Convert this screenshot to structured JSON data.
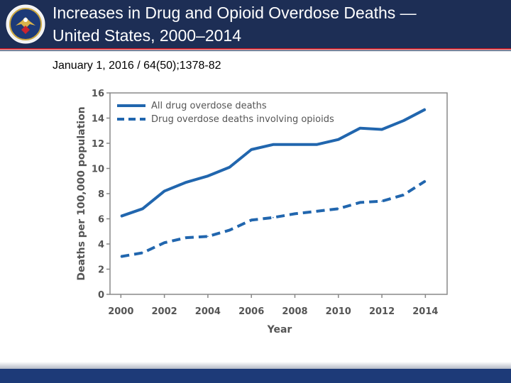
{
  "slide": {
    "title_line1": "Increases in Drug and Opioid Overdose Deaths —",
    "title_line2": "United States, 2000–2014",
    "citation": "January 1, 2016 / 64(50);1378-82"
  },
  "colors": {
    "header_bg": "#1d2e55",
    "accent_red": "#c9242f",
    "series_color": "#2166ae"
  },
  "chart_data": {
    "type": "line",
    "title": "",
    "xlabel": "Year",
    "ylabel": "Deaths per 100,000 population",
    "x": [
      2000,
      2001,
      2002,
      2003,
      2004,
      2005,
      2006,
      2007,
      2008,
      2009,
      2010,
      2011,
      2012,
      2013,
      2014
    ],
    "xlim": [
      1999.5,
      2015.0
    ],
    "ylim": [
      0,
      16
    ],
    "xticks": [
      "2000",
      "2002",
      "2004",
      "2006",
      "2008",
      "2010",
      "2012",
      "2014"
    ],
    "yticks": [
      "0",
      "2",
      "4",
      "6",
      "8",
      "10",
      "12",
      "14",
      "16"
    ],
    "grid": false,
    "legend_position": "top-left",
    "series": [
      {
        "name": "All drug overdose deaths",
        "style": "solid",
        "values": [
          6.2,
          6.8,
          8.2,
          8.9,
          9.4,
          10.1,
          11.5,
          11.9,
          11.9,
          11.9,
          12.3,
          13.2,
          13.1,
          13.8,
          14.7
        ]
      },
      {
        "name": "Drug overdose deaths involving opioids",
        "style": "dashed",
        "values": [
          3.0,
          3.3,
          4.1,
          4.5,
          4.6,
          5.1,
          5.9,
          6.1,
          6.4,
          6.6,
          6.8,
          7.3,
          7.4,
          7.9,
          9.0
        ]
      }
    ]
  }
}
